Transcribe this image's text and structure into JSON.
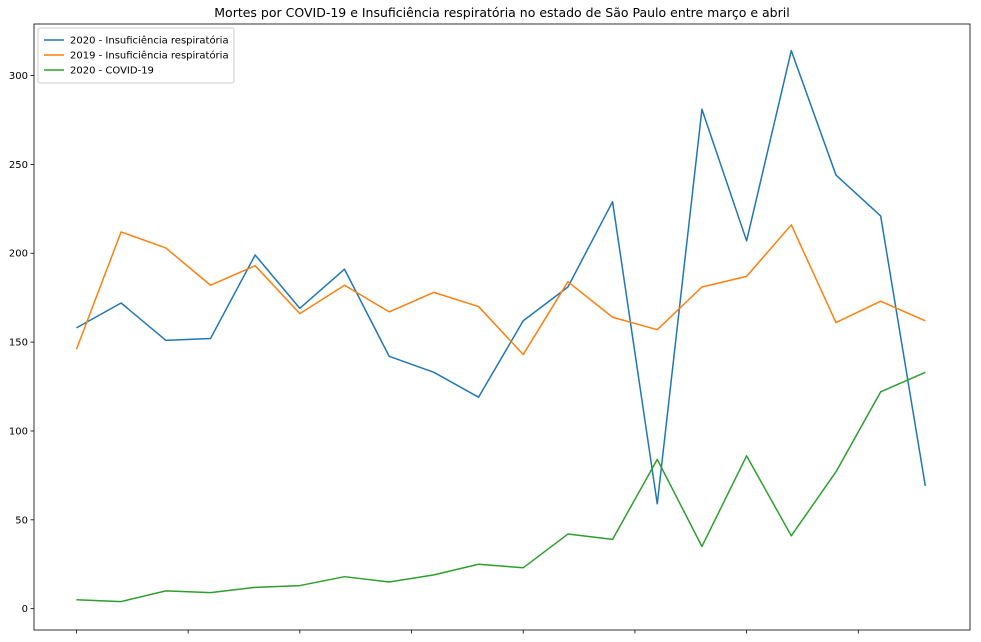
{
  "chart_data": {
    "type": "line",
    "title": "Mortes por COVID-19 e Insuficiência respiratória no estado de São Paulo entre março e abril",
    "xlabel": "",
    "ylabel": "",
    "x": [
      0,
      1,
      2,
      3,
      4,
      5,
      6,
      7,
      8,
      9,
      10,
      11,
      12,
      13,
      14,
      15,
      16,
      17,
      18,
      19
    ],
    "xlim": [
      -0.95,
      20.0
    ],
    "ylim": [
      -12,
      329
    ],
    "yticks": [
      0,
      50,
      100,
      150,
      200,
      250,
      300
    ],
    "yticklabels": [
      "0",
      "50",
      "100",
      "150",
      "200",
      "250",
      "300"
    ],
    "xticks": [
      0,
      2.5,
      5,
      7.5,
      10,
      12.5,
      15,
      17.5
    ],
    "xticklabels": [],
    "grid": false,
    "legend": "top-left",
    "series": [
      {
        "name": "2020 - Insuficiência respiratória",
        "color": "#1f77b4",
        "values": [
          158,
          172,
          151,
          152,
          199,
          169,
          191,
          142,
          133,
          119,
          162,
          181,
          229,
          59,
          281,
          207,
          314,
          244,
          221,
          69
        ]
      },
      {
        "name": "2019 - Insuficiência respiratória",
        "color": "#ff7f0e",
        "values": [
          146,
          212,
          203,
          182,
          193,
          166,
          182,
          167,
          178,
          170,
          143,
          184,
          164,
          157,
          181,
          187,
          216,
          161,
          173,
          162
        ]
      },
      {
        "name": "2020 - COVID-19",
        "color": "#2ca02c",
        "values": [
          5,
          4,
          10,
          9,
          12,
          13,
          18,
          15,
          19,
          25,
          23,
          42,
          39,
          84,
          35,
          86,
          41,
          77,
          122,
          133
        ]
      }
    ]
  }
}
